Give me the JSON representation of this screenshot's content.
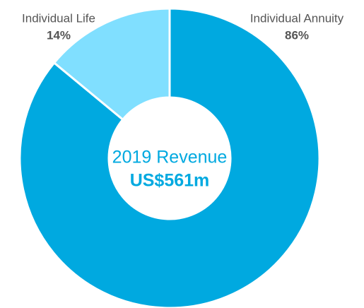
{
  "chart_data": {
    "type": "pie",
    "categories": [
      "Individual Annuity",
      "Individual Life"
    ],
    "values": [
      86,
      14
    ],
    "value_labels": [
      "86%",
      "14%"
    ],
    "colors": [
      "#00a9e0",
      "#80dfff"
    ],
    "center_title": "2019 Revenue",
    "center_value": "US$561m"
  }
}
